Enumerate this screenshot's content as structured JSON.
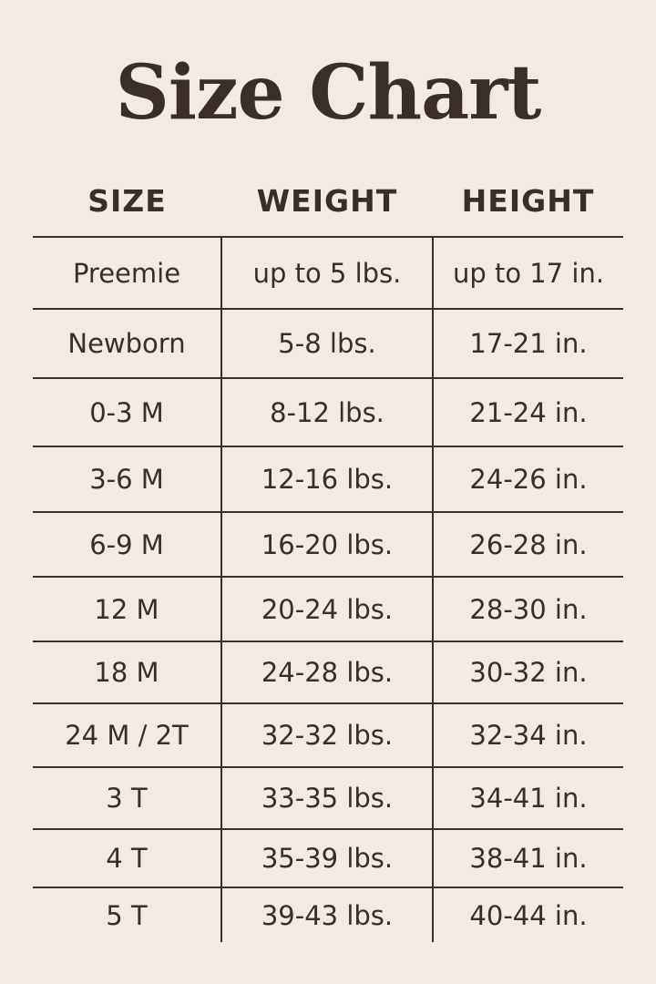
{
  "title": "Size Chart",
  "headers": [
    "SIZE",
    "WEIGHT",
    "HEIGHT"
  ],
  "rows": [
    [
      "Preemie",
      "up to 5 lbs.",
      "up to 17 in."
    ],
    [
      "Newborn",
      "5-8 lbs.",
      "17-21 in."
    ],
    [
      "0-3 M",
      "8-12 lbs.",
      "21-24 in."
    ],
    [
      "3-6 M",
      "12-16 lbs.",
      "24-26 in."
    ],
    [
      "6-9 M",
      "16-20 lbs.",
      "26-28 in."
    ],
    [
      "12 M",
      "20-24 lbs.",
      "28-30 in."
    ],
    [
      "18 M",
      "24-28 lbs.",
      "30-32 in."
    ],
    [
      "24 M / 2T",
      "32-32 lbs.",
      "32-34 in."
    ],
    [
      "3 T",
      "33-35 lbs.",
      "34-41 in."
    ],
    [
      "4 T",
      "35-39 lbs.",
      "38-41 in."
    ],
    [
      "5 T",
      "39-43 lbs.",
      "40-44 in."
    ]
  ]
}
